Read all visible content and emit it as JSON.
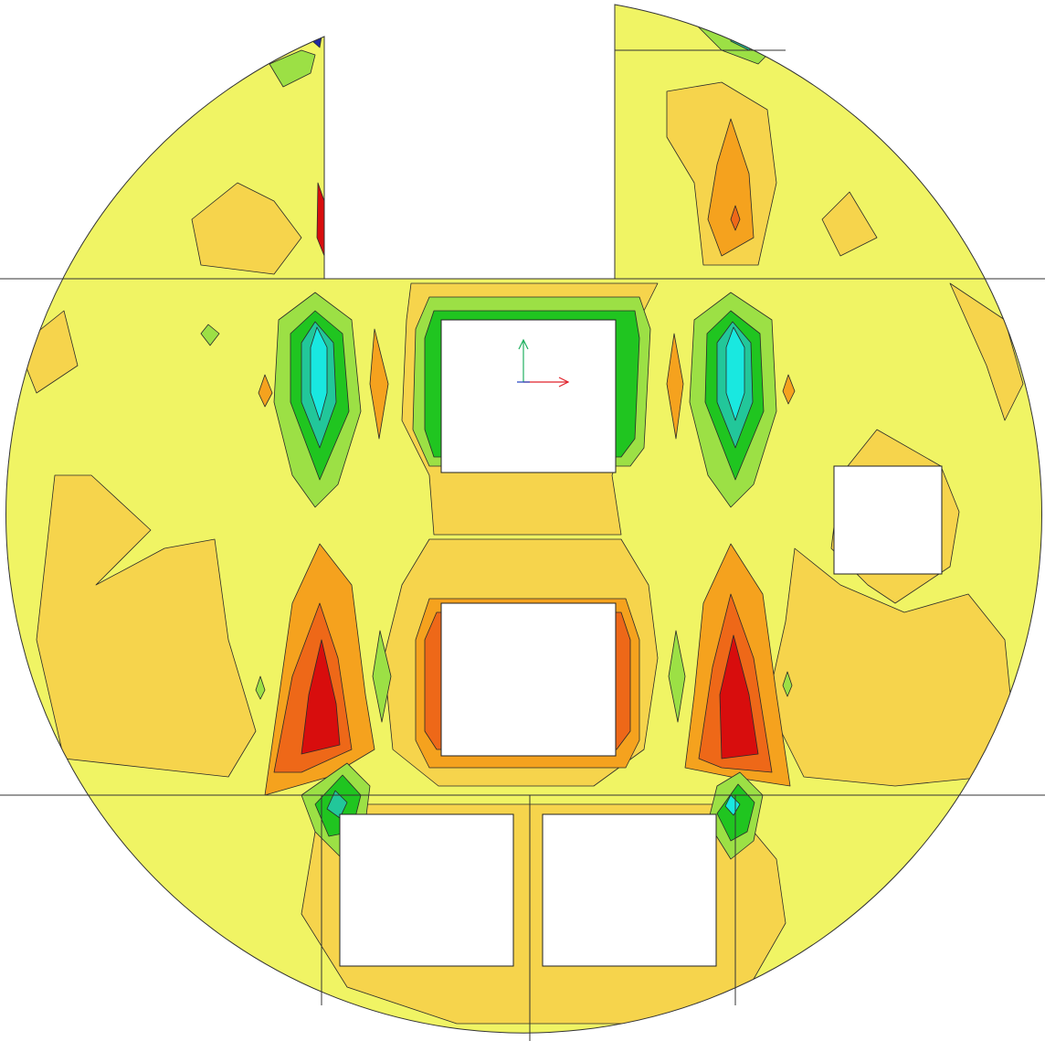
{
  "viewport": {
    "title": "",
    "plot_type": "contour plot",
    "shape": "circular slab with rectangular openings",
    "triad": {
      "x_axis_color": "#e0202a",
      "y_axis_color": "#20b060",
      "z_axis_color": "#2040c0"
    }
  },
  "palette": {
    "level_yellow": "#f0f464",
    "level_light_orange": "#f6d44c",
    "level_orange": "#f5a21e",
    "level_dark_orange": "#ee6818",
    "level_red": "#d80d0d",
    "level_light_green": "#9ce045",
    "level_green": "#20c520",
    "level_teal": "#22c79a",
    "level_cyan": "#19e8e0",
    "level_blue": "#1f2aa0",
    "background": "#ffffff",
    "contour_line": "#2a2a2a"
  }
}
